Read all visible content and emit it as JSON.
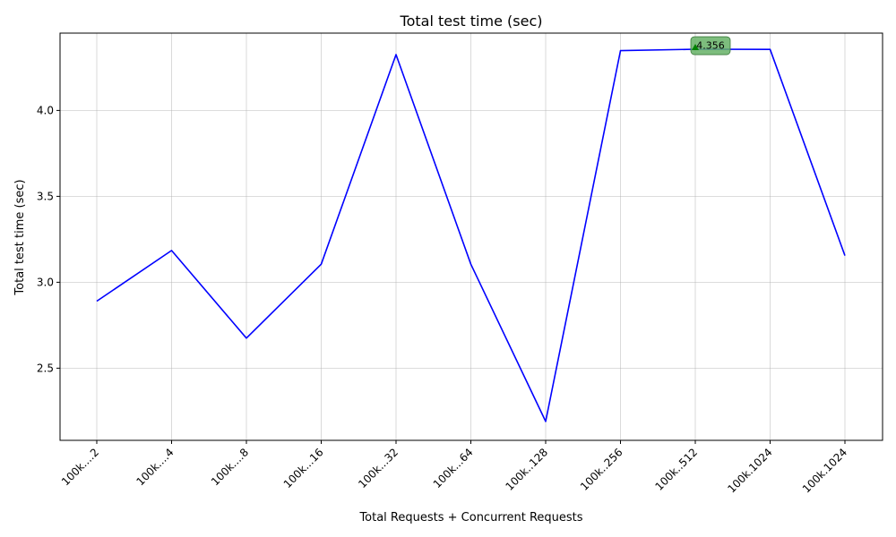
{
  "chart_data": {
    "type": "line",
    "title": "Total test time (sec)",
    "xlabel": "Total Requests + Concurrent Requests",
    "ylabel": "Total test time (sec)",
    "categories": [
      "100k....2",
      "100k....4",
      "100k....8",
      "100k...16",
      "100k...32",
      "100k...64",
      "100k..128",
      "100k..256",
      "100k..512",
      "100k.1024",
      "100k.1024"
    ],
    "series": [
      {
        "values": [
          2.89,
          3.185,
          2.675,
          3.105,
          4.325,
          3.105,
          2.19,
          4.348,
          4.356,
          4.355,
          3.155
        ]
      }
    ],
    "ylim": [
      2.08,
      4.45
    ],
    "yticks": [
      2.5,
      3.0,
      3.5,
      4.0
    ],
    "ytick_labels": [
      "2.5",
      "3.0",
      "3.5",
      "4.0"
    ],
    "grid": true,
    "line_color": "#0000ff",
    "annotation": {
      "text": "4.356",
      "point_index": 8,
      "marker_color": "#008000",
      "box_color": "#66b266"
    }
  }
}
